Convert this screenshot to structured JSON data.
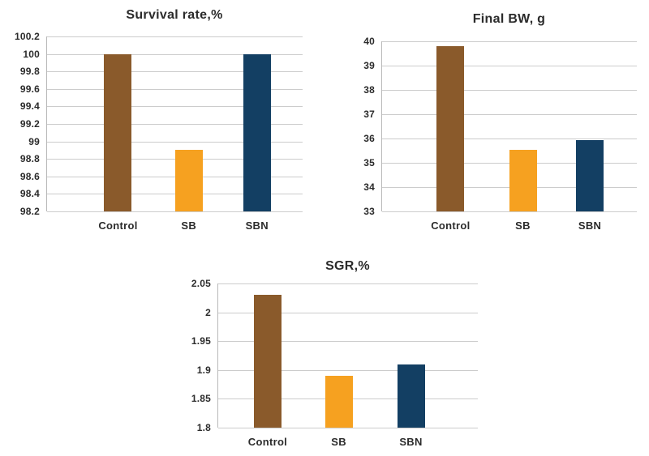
{
  "figure": {
    "background": "#ffffff"
  },
  "palette": {
    "text": "#2b2b2b",
    "gridline": "#cccccc",
    "axis_line": "#b9b9b9",
    "bar_colors": [
      "#8a5a2b",
      "#f6a120",
      "#133f63"
    ]
  },
  "chart_data": [
    {
      "type": "bar",
      "title": "Survival rate,%",
      "categories": [
        "Control",
        "SB",
        "SBN"
      ],
      "values": [
        100,
        98.9,
        100
      ],
      "ylim": [
        98.2,
        100.2
      ],
      "yticks": [
        "100.2",
        "100",
        "99.8",
        "99.6",
        "99.4",
        "99.2",
        "99",
        "98.8",
        "98.6",
        "98.4",
        "98.2"
      ],
      "xlabel": "",
      "ylabel": "",
      "grid": true,
      "legend": "none"
    },
    {
      "type": "bar",
      "title": "Final BW, g",
      "categories": [
        "Control",
        "SB",
        "SBN"
      ],
      "values": [
        39.8,
        35.55,
        35.95
      ],
      "ylim": [
        33,
        40
      ],
      "yticks": [
        "40",
        "39",
        "38",
        "37",
        "36",
        "35",
        "34",
        "33"
      ],
      "xlabel": "",
      "ylabel": "",
      "grid": true,
      "legend": "none"
    },
    {
      "type": "bar",
      "title": "SGR,%",
      "categories": [
        "Control",
        "SB",
        "SBN"
      ],
      "values": [
        2.03,
        1.89,
        1.91
      ],
      "ylim": [
        1.8,
        2.05
      ],
      "yticks": [
        "2.05",
        "2",
        "1.95",
        "1.9",
        "1.85",
        "1.8"
      ],
      "xlabel": "",
      "ylabel": "",
      "grid": true,
      "legend": "none"
    }
  ]
}
